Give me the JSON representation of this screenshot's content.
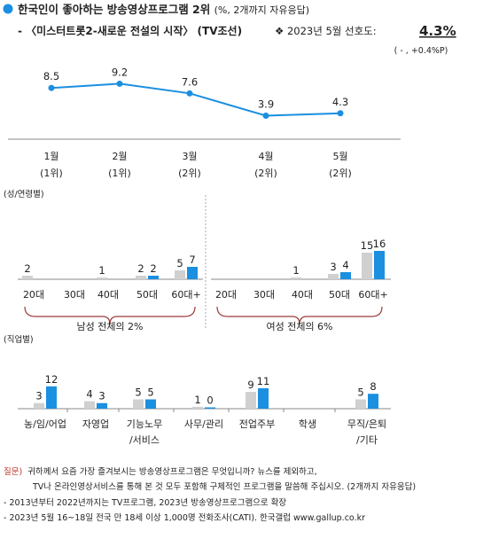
{
  "header": {
    "title": "한국인이 좋아하는 방송영상프로그램 2위",
    "title_note": "(%, 2개까지 자유응답)",
    "subtitle": "- 〈미스터트롯2-새로운 전설의 시작〉 (TV조선)",
    "pref_label": "❖  2023년 5월 선호도:",
    "pref_value": "4.3%",
    "pref_change": "( - , +0.4%P)"
  },
  "colors": {
    "accent": "#1b8fe0",
    "prev": "#d0d0d0",
    "bullet": "#1b8fe0"
  },
  "chart_data": [
    {
      "type": "line",
      "categories": [
        "1월",
        "2월",
        "3월",
        "4월",
        "5월"
      ],
      "rank_labels": [
        "(1위)",
        "(1위)",
        "(2위)",
        "(2위)",
        "(2위)"
      ],
      "values": [
        8.5,
        9.2,
        7.6,
        3.9,
        4.3
      ]
    },
    {
      "type": "bar",
      "section_label": "(성/연령별)",
      "groups": [
        {
          "label": "남성 전체의 2%",
          "categories": [
            "20대",
            "30대",
            "40대",
            "50대",
            "60대+"
          ],
          "series": [
            {
              "values": [
                2,
                null,
                1,
                2,
                5
              ]
            },
            {
              "values": [
                null,
                null,
                null,
                2,
                7
              ]
            }
          ]
        },
        {
          "label": "여성 전체의 6%",
          "categories": [
            "20대",
            "30대",
            "40대",
            "50대",
            "60대+"
          ],
          "series": [
            {
              "values": [
                null,
                null,
                1,
                3,
                15
              ]
            },
            {
              "values": [
                null,
                null,
                null,
                4,
                16
              ]
            }
          ]
        }
      ]
    },
    {
      "type": "bar",
      "section_label": "(직업별)",
      "categories": [
        "농/임/어업",
        "자영업",
        "기능노무/서비스",
        "사무/관리",
        "전업주부",
        "학생",
        "무직/은퇴/기타"
      ],
      "category_lines": [
        [
          "농/임/어업"
        ],
        [
          "자영업"
        ],
        [
          "기능노무",
          "/서비스"
        ],
        [
          "사무/관리"
        ],
        [
          "전업주부"
        ],
        [
          "학생"
        ],
        [
          "무직/은퇴",
          "/기타"
        ]
      ],
      "series": [
        {
          "values": [
            3,
            4,
            5,
            1,
            9,
            null,
            5
          ]
        },
        {
          "values": [
            12,
            3,
            5,
            0,
            11,
            null,
            8
          ]
        }
      ]
    }
  ],
  "footer": {
    "q_label": "질문)",
    "q_line1": "귀하께서 요즘 가장 즐겨보시는 방송영상프로그램은 무엇입니까? 뉴스를 제외하고,",
    "q_line2": "TV나 온라인영상서비스를 통해 본 것 모두 포함해 구체적인 프로그램을 말씀해 주십시오. (2개까지 자유응답)",
    "note1": "- 2013년부터 2022년까지는 TV프로그램, 2023년 방송영상프로그램으로 확장",
    "note2": "- 2023년 5월 16~18일 전국 만 18세 이상 1,000명 전화조사(CATI). 한국갤럽 www.gallup.co.kr"
  }
}
